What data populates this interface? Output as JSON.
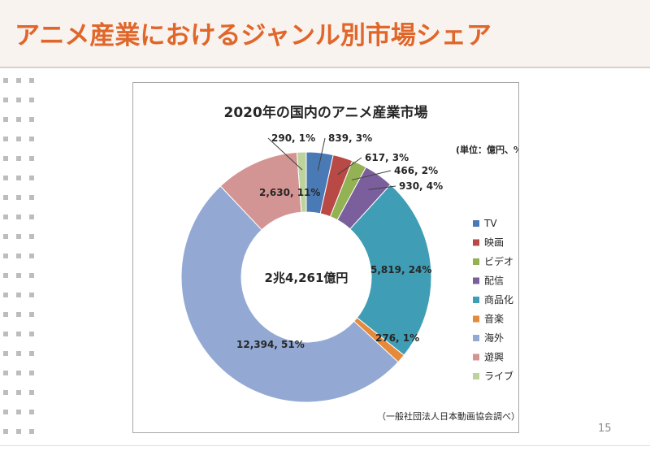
{
  "slide": {
    "title": "アニメ産業におけるジャンル別市場シェア",
    "page_number": "15"
  },
  "chart_data": {
    "type": "pie",
    "variant": "doughnut",
    "title": "2020年の国内のアニメ産業市場",
    "unit_note": "(単位：億円、%)",
    "center_label": "2兆4,261億円",
    "source_note": "（一般社団法人日本動画協会調べ）",
    "legend_position": "right",
    "categories": [
      "TV",
      "映画",
      "ビデオ",
      "配信",
      "商品化",
      "音楽",
      "海外",
      "遊興",
      "ライブ"
    ],
    "values": [
      839,
      617,
      466,
      930,
      5819,
      276,
      12394,
      2630,
      290
    ],
    "percents": [
      3,
      3,
      2,
      4,
      24,
      1,
      51,
      11,
      1
    ],
    "data_labels": [
      "839, 3%",
      "617, 3%",
      "466, 2%",
      "930, 4%",
      "5,819, 24%",
      "276, 1%",
      "12,394, 51%",
      "2,630, 11%",
      "290, 1%"
    ],
    "colors": [
      "#4a7ab5",
      "#b84945",
      "#92b254",
      "#7a5f9c",
      "#3f9eb5",
      "#e48a3a",
      "#93a9d3",
      "#d39593",
      "#bcd49b"
    ]
  }
}
